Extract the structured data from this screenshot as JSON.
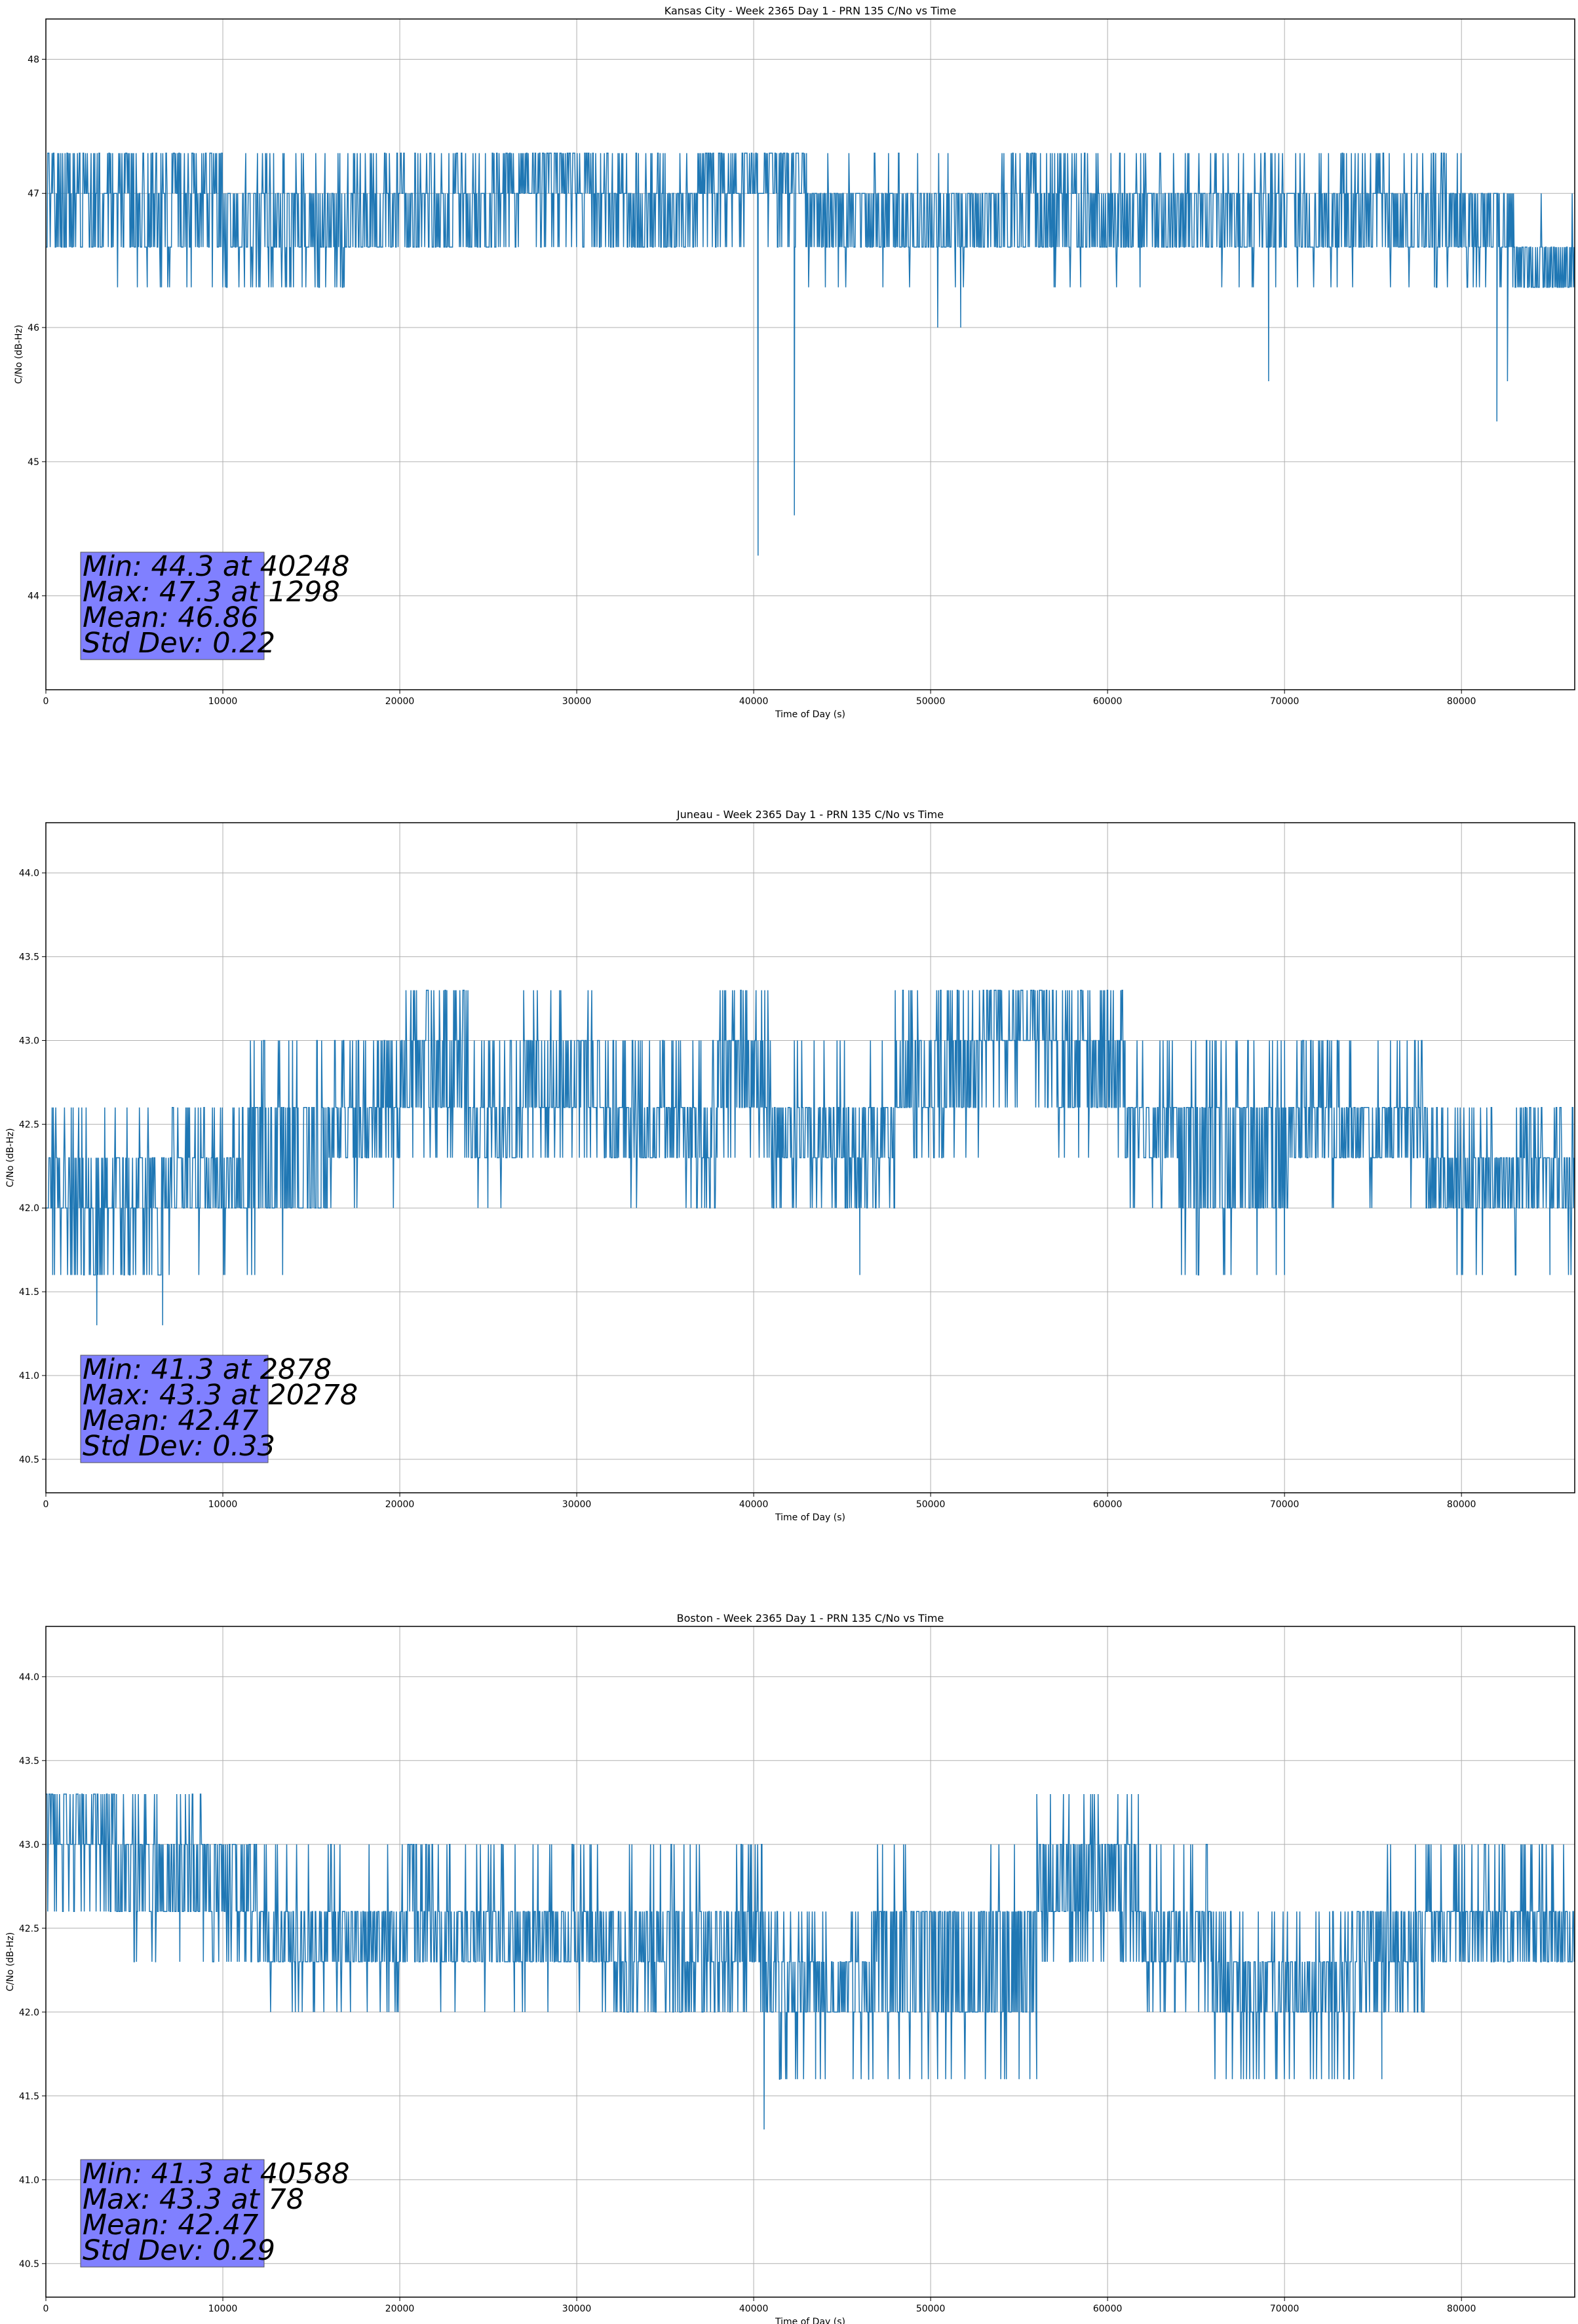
{
  "figure": {
    "line_color": "#1f77b4",
    "stats_box_color": "#8080ff"
  },
  "chart_data": [
    {
      "type": "line",
      "title": "Kansas City - Week 2365 Day 1 - PRN 135 C/No vs Time",
      "xlabel": "Time of Day (s)",
      "ylabel": "C/No (dB-Hz)",
      "xlim": [
        0,
        86400
      ],
      "ylim": [
        43.3,
        48.3
      ],
      "xticks": [
        0,
        10000,
        20000,
        30000,
        40000,
        50000,
        60000,
        70000,
        80000
      ],
      "yticks": [
        44,
        45,
        46,
        47,
        48
      ],
      "ytick_labels": [
        "44",
        "45",
        "46",
        "47",
        "48"
      ],
      "grid": true,
      "levels": [
        46.3,
        46.6,
        47.0,
        47.3
      ],
      "segments": [
        {
          "x0": 0,
          "x1": 3000,
          "lo": 46.6,
          "hi": 47.0,
          "up": 0.35,
          "down": 0.0
        },
        {
          "x0": 3000,
          "x1": 10000,
          "lo": 46.6,
          "hi": 47.0,
          "up": 0.3,
          "down": 0.05
        },
        {
          "x0": 10000,
          "x1": 17000,
          "lo": 46.6,
          "hi": 47.0,
          "up": 0.08,
          "down": 0.15
        },
        {
          "x0": 17000,
          "x1": 26000,
          "lo": 46.6,
          "hi": 47.0,
          "up": 0.15,
          "down": 0.0
        },
        {
          "x0": 26000,
          "x1": 31000,
          "lo": 47.0,
          "hi": 47.3,
          "up": 0.0,
          "down": 0.12
        },
        {
          "x0": 31000,
          "x1": 37000,
          "lo": 46.6,
          "hi": 47.0,
          "up": 0.15,
          "down": 0.0
        },
        {
          "x0": 37000,
          "x1": 43000,
          "lo": 47.0,
          "hi": 47.3,
          "up": 0.0,
          "down": 0.15
        },
        {
          "x0": 43000,
          "x1": 54000,
          "lo": 46.6,
          "hi": 47.0,
          "up": 0.03,
          "down": 0.05
        },
        {
          "x0": 54000,
          "x1": 59000,
          "lo": 46.6,
          "hi": 47.0,
          "up": 0.25,
          "down": 0.03
        },
        {
          "x0": 59000,
          "x1": 70000,
          "lo": 46.6,
          "hi": 47.0,
          "up": 0.12,
          "down": 0.03
        },
        {
          "x0": 70000,
          "x1": 80000,
          "lo": 46.6,
          "hi": 47.0,
          "up": 0.12,
          "down": 0.05
        },
        {
          "x0": 80000,
          "x1": 83000,
          "lo": 46.6,
          "hi": 47.0,
          "up": 0.0,
          "down": 0.1
        },
        {
          "x0": 83000,
          "x1": 86400,
          "lo": 46.3,
          "hi": 46.6,
          "up": 0.05,
          "down": 0.0
        }
      ],
      "spikes": [
        [
          40248,
          44.3
        ],
        [
          42300,
          44.6
        ],
        [
          50400,
          46.0
        ],
        [
          51700,
          46.0
        ],
        [
          69100,
          45.6
        ],
        [
          82000,
          45.3
        ],
        [
          82600,
          45.6
        ]
      ],
      "stats": [
        "Min: 44.3 at 40248",
        "Max: 47.3 at 1298",
        "Mean: 46.86",
        "Std Dev: 0.22"
      ]
    },
    {
      "type": "line",
      "title": "Juneau - Week 2365 Day 1 - PRN 135 C/No vs Time",
      "xlabel": "Time of Day (s)",
      "ylabel": "C/No (dB-Hz)",
      "xlim": [
        0,
        86400
      ],
      "ylim": [
        40.3,
        44.3
      ],
      "xticks": [
        0,
        10000,
        20000,
        30000,
        40000,
        50000,
        60000,
        70000,
        80000
      ],
      "yticks": [
        40.5,
        41.0,
        41.5,
        42.0,
        42.5,
        43.0,
        43.5,
        44.0
      ],
      "ytick_labels": [
        "40.5",
        "41.0",
        "41.5",
        "42.0",
        "42.5",
        "43.0",
        "43.5",
        "44.0"
      ],
      "grid": true,
      "levels": [
        41.6,
        42.0,
        42.3,
        42.6,
        43.0,
        43.3
      ],
      "segments": [
        {
          "x0": 0,
          "x1": 7000,
          "lo": 42.0,
          "hi": 42.3,
          "up": 0.05,
          "down": 0.25
        },
        {
          "x0": 7000,
          "x1": 11000,
          "lo": 42.0,
          "hi": 42.3,
          "up": 0.15,
          "down": 0.03
        },
        {
          "x0": 11000,
          "x1": 16000,
          "lo": 42.0,
          "hi": 42.6,
          "up": 0.1,
          "down": 0.05
        },
        {
          "x0": 16000,
          "x1": 20000,
          "lo": 42.3,
          "hi": 42.6,
          "up": 0.15,
          "down": 0.05
        },
        {
          "x0": 20000,
          "x1": 24000,
          "lo": 42.6,
          "hi": 43.0,
          "up": 0.25,
          "down": 0.1
        },
        {
          "x0": 24000,
          "x1": 27000,
          "lo": 42.3,
          "hi": 42.6,
          "up": 0.2,
          "down": 0.05
        },
        {
          "x0": 27000,
          "x1": 31000,
          "lo": 42.6,
          "hi": 43.0,
          "up": 0.05,
          "down": 0.15
        },
        {
          "x0": 31000,
          "x1": 38000,
          "lo": 42.3,
          "hi": 42.6,
          "up": 0.15,
          "down": 0.05
        },
        {
          "x0": 38000,
          "x1": 41000,
          "lo": 42.6,
          "hi": 43.0,
          "up": 0.1,
          "down": 0.1
        },
        {
          "x0": 41000,
          "x1": 48000,
          "lo": 42.3,
          "hi": 42.6,
          "up": 0.05,
          "down": 0.2
        },
        {
          "x0": 48000,
          "x1": 53000,
          "lo": 42.6,
          "hi": 43.0,
          "up": 0.2,
          "down": 0.1
        },
        {
          "x0": 53000,
          "x1": 57000,
          "lo": 43.0,
          "hi": 43.3,
          "up": 0.0,
          "down": 0.15
        },
        {
          "x0": 57000,
          "x1": 61000,
          "lo": 42.6,
          "hi": 43.0,
          "up": 0.15,
          "down": 0.05
        },
        {
          "x0": 61000,
          "x1": 64000,
          "lo": 42.3,
          "hi": 42.6,
          "up": 0.05,
          "down": 0.05
        },
        {
          "x0": 64000,
          "x1": 70000,
          "lo": 42.0,
          "hi": 42.6,
          "up": 0.1,
          "down": 0.05
        },
        {
          "x0": 70000,
          "x1": 78000,
          "lo": 42.3,
          "hi": 42.6,
          "up": 0.15,
          "down": 0.1
        },
        {
          "x0": 78000,
          "x1": 86400,
          "lo": 42.0,
          "hi": 42.3,
          "up": 0.2,
          "down": 0.05
        }
      ],
      "spikes": [
        [
          2878,
          41.3
        ],
        [
          6600,
          41.3
        ],
        [
          46000,
          41.6
        ],
        [
          70000,
          41.6
        ],
        [
          80000,
          41.6
        ],
        [
          85000,
          41.6
        ]
      ],
      "stats": [
        "Min: 41.3 at 2878",
        "Max: 43.3 at 20278",
        "Mean: 42.47",
        "Std Dev: 0.33"
      ]
    },
    {
      "type": "line",
      "title": "Boston - Week 2365 Day 1 - PRN 135 C/No vs Time",
      "xlabel": "Time of Day (s)",
      "ylabel": "C/No (dB-Hz)",
      "xlim": [
        0,
        86400
      ],
      "ylim": [
        40.3,
        44.3
      ],
      "xticks": [
        0,
        10000,
        20000,
        30000,
        40000,
        50000,
        60000,
        70000,
        80000
      ],
      "yticks": [
        40.5,
        41.0,
        41.5,
        42.0,
        42.5,
        43.0,
        43.5,
        44.0
      ],
      "ytick_labels": [
        "40.5",
        "41.0",
        "41.5",
        "42.0",
        "42.5",
        "43.0",
        "43.5",
        "44.0"
      ],
      "grid": true,
      "levels": [
        41.6,
        42.0,
        42.3,
        42.6,
        43.0,
        43.3
      ],
      "segments": [
        {
          "x0": 0,
          "x1": 4000,
          "lo": 43.0,
          "hi": 43.3,
          "up": 0.0,
          "down": 0.15
        },
        {
          "x0": 4000,
          "x1": 9000,
          "lo": 42.6,
          "hi": 43.0,
          "up": 0.15,
          "down": 0.05
        },
        {
          "x0": 9000,
          "x1": 12000,
          "lo": 42.6,
          "hi": 43.0,
          "up": 0.0,
          "down": 0.15
        },
        {
          "x0": 12000,
          "x1": 20000,
          "lo": 42.3,
          "hi": 42.6,
          "up": 0.05,
          "down": 0.05
        },
        {
          "x0": 20000,
          "x1": 22000,
          "lo": 42.3,
          "hi": 42.6,
          "up": 0.25,
          "down": 0.0
        },
        {
          "x0": 22000,
          "x1": 32000,
          "lo": 42.3,
          "hi": 42.6,
          "up": 0.08,
          "down": 0.03
        },
        {
          "x0": 32000,
          "x1": 41000,
          "lo": 42.3,
          "hi": 42.6,
          "up": 0.1,
          "down": 0.25
        },
        {
          "x0": 41000,
          "x1": 47000,
          "lo": 42.0,
          "hi": 42.3,
          "up": 0.1,
          "down": 0.1
        },
        {
          "x0": 47000,
          "x1": 56000,
          "lo": 42.0,
          "hi": 42.6,
          "up": 0.05,
          "down": 0.05
        },
        {
          "x0": 56000,
          "x1": 62000,
          "lo": 42.6,
          "hi": 43.0,
          "up": 0.1,
          "down": 0.15
        },
        {
          "x0": 62000,
          "x1": 66000,
          "lo": 42.3,
          "hi": 42.6,
          "up": 0.1,
          "down": 0.1
        },
        {
          "x0": 66000,
          "x1": 74000,
          "lo": 42.0,
          "hi": 42.3,
          "up": 0.15,
          "down": 0.1
        },
        {
          "x0": 74000,
          "x1": 78000,
          "lo": 42.3,
          "hi": 42.6,
          "up": 0.05,
          "down": 0.25
        },
        {
          "x0": 78000,
          "x1": 86400,
          "lo": 42.3,
          "hi": 42.6,
          "up": 0.15,
          "down": 0.0
        }
      ],
      "spikes": [
        [
          40588,
          41.3
        ],
        [
          43500,
          41.6
        ],
        [
          46500,
          41.6
        ],
        [
          49500,
          41.6
        ],
        [
          55000,
          41.6
        ],
        [
          69500,
          41.6
        ],
        [
          75500,
          41.6
        ],
        [
          5000,
          42.3
        ],
        [
          6200,
          42.3
        ]
      ],
      "stats": [
        "Min: 41.3 at 40588",
        "Max: 43.3 at 78",
        "Mean: 42.47",
        "Std Dev: 0.29"
      ]
    }
  ]
}
